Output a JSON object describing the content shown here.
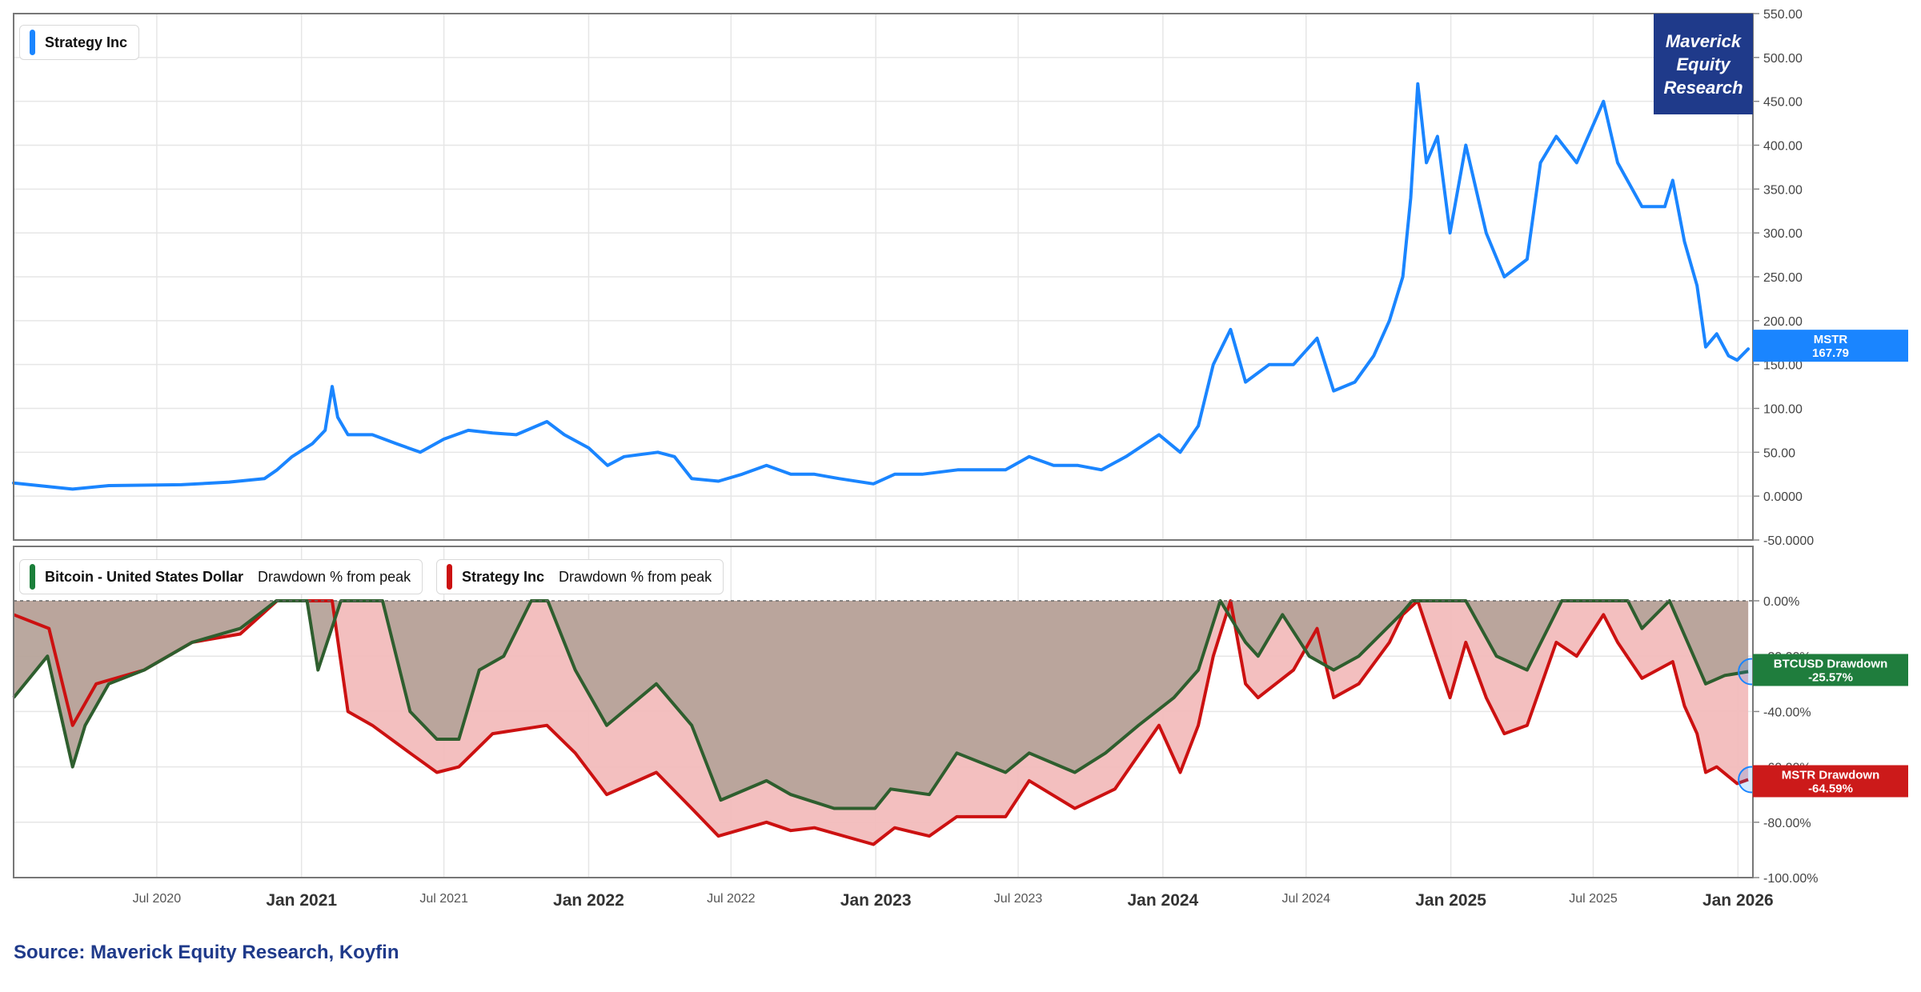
{
  "brand": {
    "label": "Maverick\nEquity\nResearch",
    "color": "#1f3a8a"
  },
  "source": "Source: Maverick Equity Research, Koyfin",
  "x_axis": {
    "range": [
      "2020-01-01",
      "2026-01-20"
    ],
    "ticks": [
      {
        "date": "2020-07-01",
        "label": "Jul 2020",
        "major": false
      },
      {
        "date": "2021-01-01",
        "label": "Jan 2021",
        "major": true
      },
      {
        "date": "2021-07-01",
        "label": "Jul 2021",
        "major": false
      },
      {
        "date": "2022-01-01",
        "label": "Jan 2022",
        "major": true
      },
      {
        "date": "2022-07-01",
        "label": "Jul 2022",
        "major": false
      },
      {
        "date": "2023-01-01",
        "label": "Jan 2023",
        "major": true
      },
      {
        "date": "2023-07-01",
        "label": "Jul 2023",
        "major": false
      },
      {
        "date": "2024-01-01",
        "label": "Jan 2024",
        "major": true
      },
      {
        "date": "2024-07-01",
        "label": "Jul 2024",
        "major": false
      },
      {
        "date": "2025-01-01",
        "label": "Jan 2025",
        "major": true
      },
      {
        "date": "2025-07-01",
        "label": "Jul 2025",
        "major": false
      },
      {
        "date": "2026-01-01",
        "label": "Jan 2026",
        "major": true
      }
    ]
  },
  "chart_data": [
    {
      "type": "line",
      "legend": [
        {
          "name": "Strategy Inc",
          "color": "#1a85ff"
        }
      ],
      "ylim": [
        -50,
        550
      ],
      "y_ticks": [
        "550.00",
        "500.00",
        "450.00",
        "400.00",
        "350.00",
        "300.00",
        "250.00",
        "200.00",
        "150.00",
        "100.00",
        "50.00",
        "0.0000",
        "-50.0000"
      ],
      "grid": true,
      "last_value_tag": {
        "name": "MSTR",
        "value": "167.79",
        "color": "#1a85ff"
      },
      "series": [
        {
          "name": "Strategy Inc",
          "color": "#1a85ff",
          "points": [
            [
              "2020-01-01",
              15
            ],
            [
              "2020-03-16",
              8
            ],
            [
              "2020-05-01",
              12
            ],
            [
              "2020-08-01",
              13
            ],
            [
              "2020-10-01",
              16
            ],
            [
              "2020-11-15",
              20
            ],
            [
              "2020-12-01",
              30
            ],
            [
              "2020-12-20",
              45
            ],
            [
              "2021-01-15",
              60
            ],
            [
              "2021-01-31",
              75
            ],
            [
              "2021-02-09",
              125
            ],
            [
              "2021-02-16",
              90
            ],
            [
              "2021-03-01",
              70
            ],
            [
              "2021-04-01",
              70
            ],
            [
              "2021-05-01",
              60
            ],
            [
              "2021-06-01",
              50
            ],
            [
              "2021-07-01",
              65
            ],
            [
              "2021-08-01",
              75
            ],
            [
              "2021-09-01",
              72
            ],
            [
              "2021-10-01",
              70
            ],
            [
              "2021-11-09",
              85
            ],
            [
              "2021-12-01",
              70
            ],
            [
              "2022-01-01",
              55
            ],
            [
              "2022-01-25",
              35
            ],
            [
              "2022-02-15",
              45
            ],
            [
              "2022-03-30",
              50
            ],
            [
              "2022-04-20",
              45
            ],
            [
              "2022-05-12",
              20
            ],
            [
              "2022-06-15",
              17
            ],
            [
              "2022-07-15",
              25
            ],
            [
              "2022-08-15",
              35
            ],
            [
              "2022-09-15",
              25
            ],
            [
              "2022-10-15",
              25
            ],
            [
              "2022-11-15",
              20
            ],
            [
              "2022-12-29",
              14
            ],
            [
              "2023-01-25",
              25
            ],
            [
              "2023-03-01",
              25
            ],
            [
              "2023-04-15",
              30
            ],
            [
              "2023-05-15",
              30
            ],
            [
              "2023-06-15",
              30
            ],
            [
              "2023-07-15",
              45
            ],
            [
              "2023-08-15",
              35
            ],
            [
              "2023-09-15",
              35
            ],
            [
              "2023-10-15",
              30
            ],
            [
              "2023-11-15",
              45
            ],
            [
              "2023-12-27",
              70
            ],
            [
              "2024-01-23",
              50
            ],
            [
              "2024-02-15",
              80
            ],
            [
              "2024-03-05",
              150
            ],
            [
              "2024-03-27",
              190
            ],
            [
              "2024-04-15",
              130
            ],
            [
              "2024-05-15",
              150
            ],
            [
              "2024-06-15",
              150
            ],
            [
              "2024-07-15",
              180
            ],
            [
              "2024-08-05",
              120
            ],
            [
              "2024-09-01",
              130
            ],
            [
              "2024-09-25",
              160
            ],
            [
              "2024-10-15",
              200
            ],
            [
              "2024-11-01",
              250
            ],
            [
              "2024-11-11",
              340
            ],
            [
              "2024-11-20",
              470
            ],
            [
              "2024-12-01",
              380
            ],
            [
              "2024-12-15",
              410
            ],
            [
              "2024-12-31",
              300
            ],
            [
              "2025-01-20",
              400
            ],
            [
              "2025-02-15",
              300
            ],
            [
              "2025-03-10",
              250
            ],
            [
              "2025-04-08",
              270
            ],
            [
              "2025-04-25",
              380
            ],
            [
              "2025-05-15",
              410
            ],
            [
              "2025-06-10",
              380
            ],
            [
              "2025-07-14",
              450
            ],
            [
              "2025-08-01",
              380
            ],
            [
              "2025-09-01",
              330
            ],
            [
              "2025-09-30",
              330
            ],
            [
              "2025-10-10",
              360
            ],
            [
              "2025-10-25",
              290
            ],
            [
              "2025-11-10",
              240
            ],
            [
              "2025-11-21",
              170
            ],
            [
              "2025-12-05",
              185
            ],
            [
              "2025-12-20",
              160
            ],
            [
              "2025-12-31",
              155
            ],
            [
              "2026-01-14",
              167.79
            ]
          ]
        }
      ]
    },
    {
      "type": "area",
      "legend": [
        {
          "name": "Bitcoin - United States Dollar",
          "subtitle": "Drawdown % from peak",
          "color": "#1b7f3a"
        },
        {
          "name": "Strategy Inc",
          "subtitle": "Drawdown % from peak",
          "color": "#cc1111"
        }
      ],
      "ylim": [
        -100,
        0
      ],
      "y_ticks": [
        "0.00%",
        "-20.00%",
        "-40.00%",
        "-60.00%",
        "-80.00%",
        "-100.00%"
      ],
      "grid": true,
      "zero_line": "dashed",
      "last_value_tags": [
        {
          "name": "BTCUSD Drawdown",
          "value": "-25.57%",
          "color": "#1f7d3d"
        },
        {
          "name": "MSTR Drawdown",
          "value": "-64.59%",
          "color": "#cc1a1a"
        }
      ],
      "series": [
        {
          "name": "Bitcoin - United States Dollar",
          "color": "#2e5e2e",
          "fill": "#b6a39a",
          "points": [
            [
              "2020-01-01",
              -35
            ],
            [
              "2020-02-13",
              -20
            ],
            [
              "2020-03-16",
              -60
            ],
            [
              "2020-04-01",
              -45
            ],
            [
              "2020-05-01",
              -30
            ],
            [
              "2020-06-15",
              -25
            ],
            [
              "2020-08-15",
              -15
            ],
            [
              "2020-10-15",
              -10
            ],
            [
              "2020-11-30",
              0
            ],
            [
              "2021-01-08",
              0
            ],
            [
              "2021-01-22",
              -25
            ],
            [
              "2021-02-20",
              0
            ],
            [
              "2021-04-14",
              0
            ],
            [
              "2021-05-19",
              -40
            ],
            [
              "2021-06-22",
              -50
            ],
            [
              "2021-07-20",
              -50
            ],
            [
              "2021-08-15",
              -25
            ],
            [
              "2021-09-15",
              -20
            ],
            [
              "2021-10-20",
              0
            ],
            [
              "2021-11-10",
              0
            ],
            [
              "2021-12-15",
              -25
            ],
            [
              "2022-01-24",
              -45
            ],
            [
              "2022-03-28",
              -30
            ],
            [
              "2022-05-12",
              -45
            ],
            [
              "2022-06-18",
              -72
            ],
            [
              "2022-08-15",
              -65
            ],
            [
              "2022-09-15",
              -70
            ],
            [
              "2022-11-09",
              -75
            ],
            [
              "2022-12-31",
              -75
            ],
            [
              "2023-01-20",
              -68
            ],
            [
              "2023-03-10",
              -70
            ],
            [
              "2023-04-14",
              -55
            ],
            [
              "2023-06-15",
              -62
            ],
            [
              "2023-07-15",
              -55
            ],
            [
              "2023-09-11",
              -62
            ],
            [
              "2023-10-20",
              -55
            ],
            [
              "2023-12-01",
              -45
            ],
            [
              "2024-01-15",
              -35
            ],
            [
              "2024-02-15",
              -25
            ],
            [
              "2024-03-14",
              0
            ],
            [
              "2024-04-15",
              -15
            ],
            [
              "2024-05-01",
              -20
            ],
            [
              "2024-06-01",
              -5
            ],
            [
              "2024-07-05",
              -20
            ],
            [
              "2024-08-05",
              -25
            ],
            [
              "2024-09-06",
              -20
            ],
            [
              "2024-10-29",
              -5
            ],
            [
              "2024-11-13",
              0
            ],
            [
              "2024-12-17",
              0
            ],
            [
              "2025-01-20",
              0
            ],
            [
              "2025-02-28",
              -20
            ],
            [
              "2025-04-08",
              -25
            ],
            [
              "2025-05-22",
              0
            ],
            [
              "2025-07-14",
              0
            ],
            [
              "2025-08-14",
              0
            ],
            [
              "2025-09-01",
              -10
            ],
            [
              "2025-10-06",
              0
            ],
            [
              "2025-11-21",
              -30
            ],
            [
              "2025-12-15",
              -27
            ],
            [
              "2026-01-14",
              -25.57
            ]
          ]
        },
        {
          "name": "Strategy Inc",
          "color": "#cc1111",
          "fill": "#f2bcbc",
          "points": [
            [
              "2020-01-01",
              -5
            ],
            [
              "2020-02-15",
              -10
            ],
            [
              "2020-03-16",
              -45
            ],
            [
              "2020-04-15",
              -30
            ],
            [
              "2020-06-15",
              -25
            ],
            [
              "2020-08-15",
              -15
            ],
            [
              "2020-10-15",
              -12
            ],
            [
              "2020-12-01",
              0
            ],
            [
              "2021-01-15",
              0
            ],
            [
              "2021-02-09",
              0
            ],
            [
              "2021-03-01",
              -40
            ],
            [
              "2021-04-01",
              -45
            ],
            [
              "2021-05-19",
              -55
            ],
            [
              "2021-06-22",
              -62
            ],
            [
              "2021-07-20",
              -60
            ],
            [
              "2021-09-01",
              -48
            ],
            [
              "2021-11-09",
              -45
            ],
            [
              "2021-12-15",
              -55
            ],
            [
              "2022-01-24",
              -70
            ],
            [
              "2022-03-28",
              -62
            ],
            [
              "2022-05-12",
              -75
            ],
            [
              "2022-06-15",
              -85
            ],
            [
              "2022-08-15",
              -80
            ],
            [
              "2022-09-15",
              -83
            ],
            [
              "2022-10-15",
              -82
            ],
            [
              "2022-12-29",
              -88
            ],
            [
              "2023-01-25",
              -82
            ],
            [
              "2023-03-10",
              -85
            ],
            [
              "2023-04-14",
              -78
            ],
            [
              "2023-06-15",
              -78
            ],
            [
              "2023-07-15",
              -65
            ],
            [
              "2023-09-11",
              -75
            ],
            [
              "2023-11-01",
              -68
            ],
            [
              "2023-12-27",
              -45
            ],
            [
              "2024-01-23",
              -62
            ],
            [
              "2024-02-15",
              -45
            ],
            [
              "2024-03-05",
              -20
            ],
            [
              "2024-03-27",
              0
            ],
            [
              "2024-04-15",
              -30
            ],
            [
              "2024-05-01",
              -35
            ],
            [
              "2024-06-15",
              -25
            ],
            [
              "2024-07-15",
              -10
            ],
            [
              "2024-08-05",
              -35
            ],
            [
              "2024-09-06",
              -30
            ],
            [
              "2024-10-15",
              -15
            ],
            [
              "2024-11-01",
              -5
            ],
            [
              "2024-11-20",
              0
            ],
            [
              "2024-12-31",
              -35
            ],
            [
              "2025-01-20",
              -15
            ],
            [
              "2025-02-15",
              -35
            ],
            [
              "2025-03-10",
              -48
            ],
            [
              "2025-04-08",
              -45
            ],
            [
              "2025-05-15",
              -15
            ],
            [
              "2025-06-10",
              -20
            ],
            [
              "2025-07-14",
              -5
            ],
            [
              "2025-08-01",
              -15
            ],
            [
              "2025-09-01",
              -28
            ],
            [
              "2025-10-10",
              -22
            ],
            [
              "2025-10-25",
              -38
            ],
            [
              "2025-11-10",
              -48
            ],
            [
              "2025-11-21",
              -62
            ],
            [
              "2025-12-05",
              -60
            ],
            [
              "2025-12-31",
              -66
            ],
            [
              "2026-01-14",
              -64.59
            ]
          ]
        }
      ]
    }
  ]
}
